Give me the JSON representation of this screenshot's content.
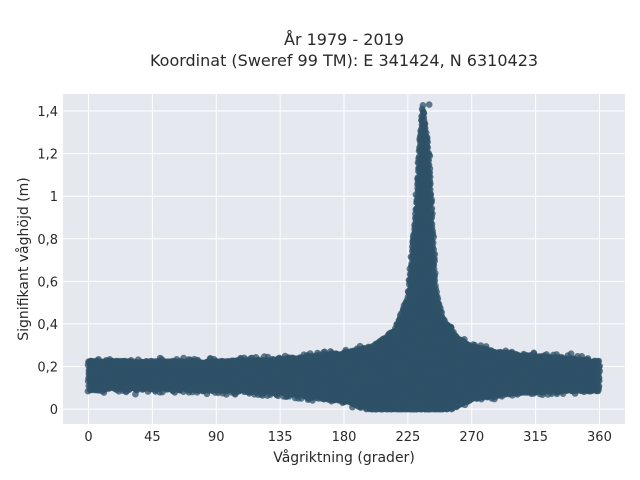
{
  "chart_data": {
    "type": "scatter",
    "title_line1": "År 1979 - 2019",
    "title_line2": "Koordinat (Sweref 99 TM): E 341424, N 6310423",
    "xlabel": "Vågriktning (grader)",
    "ylabel": "Signifikant våghöjd (m)",
    "xlim": [
      -18,
      378
    ],
    "ylim": [
      -0.07,
      1.48
    ],
    "x_ticks": [
      0,
      45,
      90,
      135,
      180,
      225,
      270,
      315,
      360
    ],
    "x_tick_labels": [
      "0",
      "45",
      "90",
      "135",
      "180",
      "225",
      "270",
      "315",
      "360"
    ],
    "y_ticks": [
      0,
      0.2,
      0.4,
      0.6,
      0.8,
      1.0,
      1.2,
      1.4
    ],
    "y_tick_labels": [
      "0",
      "0,2",
      "0,4",
      "0,6",
      "0,8",
      "1",
      "1,2",
      "1,4"
    ],
    "grid": true,
    "colors": {
      "points": "#2f5168",
      "plot_background": "#e5e8ef",
      "grid": "#ffffff"
    },
    "density_envelope": {
      "description_values": "upper and lower bounds of the point cloud in data units, by direction",
      "direction": [
        0,
        20,
        45,
        90,
        135,
        180,
        200,
        215,
        225,
        230,
        235,
        240,
        245,
        250,
        260,
        270,
        300,
        330,
        360
      ],
      "upper": [
        0.22,
        0.22,
        0.22,
        0.22,
        0.23,
        0.26,
        0.29,
        0.36,
        0.52,
        0.9,
        1.43,
        1.2,
        0.55,
        0.42,
        0.33,
        0.29,
        0.25,
        0.24,
        0.22
      ],
      "lower": [
        0.09,
        0.1,
        0.1,
        0.09,
        0.08,
        0.04,
        0.0,
        0.0,
        0.0,
        0.0,
        0.0,
        0.0,
        0.0,
        0.0,
        0.02,
        0.05,
        0.08,
        0.09,
        0.09
      ]
    },
    "outliers": [
      {
        "x": 33,
        "y": 0.07
      },
      {
        "x": 67,
        "y": 0.24
      },
      {
        "x": 240,
        "y": 1.43
      },
      {
        "x": 235,
        "y": 1.41
      },
      {
        "x": 340,
        "y": 0.26
      }
    ]
  }
}
